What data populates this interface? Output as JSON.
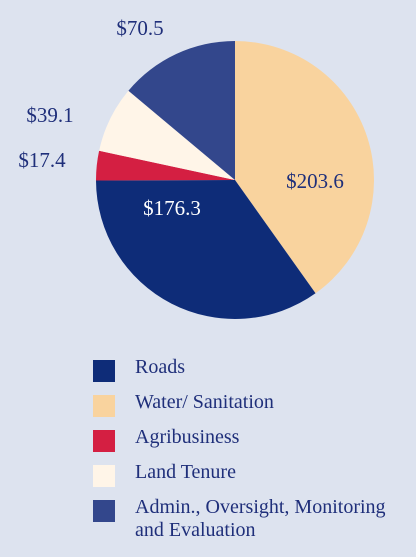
{
  "chart_data": {
    "type": "pie",
    "categories": [
      "Water/ Sanitation",
      "Roads",
      "Agribusiness",
      "Land Tenure",
      "Admin., Oversight, Monitoring and Evaluation"
    ],
    "values": [
      203.6,
      176.3,
      17.4,
      39.1,
      70.5
    ],
    "value_labels": [
      "$203.6",
      "$176.3",
      "$17.4",
      "$39.1",
      "$70.5"
    ],
    "colors": [
      "#f9d39e",
      "#0e2c78",
      "#d41f42",
      "#fff5e8",
      "#33478c"
    ],
    "legend_order": [
      1,
      0,
      2,
      3,
      4
    ]
  }
}
